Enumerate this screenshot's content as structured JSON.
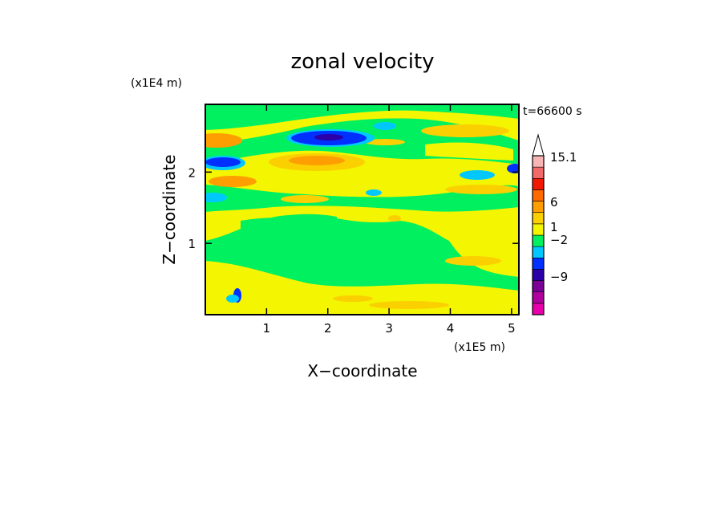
{
  "chart_data": {
    "type": "heatmap",
    "title": "zonal velocity",
    "xlabel": "X−coordinate",
    "ylabel": "Z−coordinate",
    "x_unit": "(x1E5 m)",
    "y_unit": "(x1E4 m)",
    "time_label": "t=66600 s",
    "xlim": [
      0,
      5.12
    ],
    "ylim": [
      0,
      2.95
    ],
    "x_ticks": [
      1,
      2,
      3,
      4,
      5
    ],
    "y_ticks": [
      1,
      2
    ],
    "x_tick_labels": [
      "1",
      "2",
      "3",
      "4",
      "5"
    ],
    "y_tick_labels": [
      "1",
      "2"
    ],
    "colorbar": {
      "labels": [
        {
          "text": "15.1",
          "value": 15.1
        },
        {
          "text": "6",
          "value": 6
        },
        {
          "text": "1",
          "value": 1
        },
        {
          "text": "−2",
          "value": -2
        },
        {
          "text": "−9",
          "value": -9
        }
      ],
      "levels": [
        {
          "color": "#e800ac"
        },
        {
          "color": "#b0009e"
        },
        {
          "color": "#7a0096"
        },
        {
          "color": "#2b00a8"
        },
        {
          "color": "#0030ff"
        },
        {
          "color": "#00c8ff"
        },
        {
          "color": "#00f060"
        },
        {
          "color": "#f4f500"
        },
        {
          "color": "#fbd000"
        },
        {
          "color": "#ff9e00"
        },
        {
          "color": "#ff6a00"
        },
        {
          "color": "#f21800"
        },
        {
          "color": "#f26a6a"
        },
        {
          "color": "#f8b5b5"
        }
      ]
    }
  }
}
